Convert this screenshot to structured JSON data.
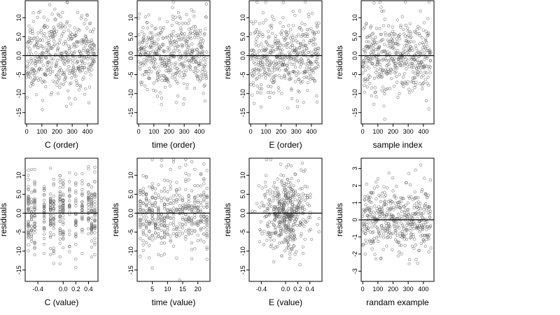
{
  "chart_data": [
    {
      "type": "scatter",
      "xlabel": "C (order)",
      "ylabel": "residuals",
      "xlim": [
        -10,
        470
      ],
      "ylim": [
        -18,
        14.5
      ],
      "xticks": [
        0,
        100,
        200,
        300,
        400
      ],
      "xtick_labels": [
        "0",
        "100",
        "200",
        "300",
        "400"
      ],
      "yticks": [
        -15,
        -10,
        -5,
        0,
        5,
        10
      ],
      "ytick_labels": [
        "-15",
        "-10",
        "-5",
        "0.0",
        "5.0",
        "10"
      ],
      "hline": 0,
      "n": 450,
      "x_mode": "order",
      "seed": 11,
      "sd": 5
    },
    {
      "type": "scatter",
      "xlabel": "time (order)",
      "ylabel": "residuals",
      "xlim": [
        -10,
        470
      ],
      "ylim": [
        -18,
        14.5
      ],
      "xticks": [
        0,
        100,
        200,
        300,
        400
      ],
      "xtick_labels": [
        "0",
        "100",
        "200",
        "300",
        "400"
      ],
      "yticks": [
        -15,
        -10,
        -5,
        0,
        5,
        10
      ],
      "ytick_labels": [
        "-15",
        "-10",
        "-5",
        "0.0",
        "5.0",
        "10"
      ],
      "hline": 0,
      "n": 450,
      "x_mode": "order",
      "seed": 23,
      "sd": 5
    },
    {
      "type": "scatter",
      "xlabel": "E (order)",
      "ylabel": "residuals",
      "xlim": [
        -10,
        470
      ],
      "ylim": [
        -18,
        14.5
      ],
      "xticks": [
        0,
        100,
        200,
        300,
        400
      ],
      "xtick_labels": [
        "0",
        "100",
        "200",
        "300",
        "400"
      ],
      "yticks": [
        -15,
        -10,
        -5,
        0,
        5,
        10
      ],
      "ytick_labels": [
        "-15",
        "-10",
        "-5",
        "0.0",
        "5.0",
        "10"
      ],
      "hline": 0,
      "n": 450,
      "x_mode": "order",
      "seed": 37,
      "sd": 5
    },
    {
      "type": "scatter",
      "xlabel": "sample index",
      "ylabel": "residuals",
      "xlim": [
        -10,
        470
      ],
      "ylim": [
        -18,
        14.5
      ],
      "xticks": [
        0,
        100,
        200,
        300,
        400
      ],
      "xtick_labels": [
        "0",
        "100",
        "200",
        "300",
        "400"
      ],
      "yticks": [
        -15,
        -10,
        -5,
        0,
        5,
        10
      ],
      "ytick_labels": [
        "-15",
        "-10",
        "-5",
        "0.0",
        "5.0",
        "10"
      ],
      "hline": 0,
      "n": 450,
      "x_mode": "order",
      "seed": 41,
      "sd": 5
    },
    {
      "type": "scatter",
      "xlabel": "C (value)",
      "ylabel": "residuals",
      "xlim": [
        -0.6,
        0.55
      ],
      "ylim": [
        -18,
        14.5
      ],
      "xticks": [
        -0.4,
        0,
        0.2,
        0.4
      ],
      "xtick_labels": [
        "-0.4",
        "0.0",
        "0.2",
        "0.4"
      ],
      "yticks": [
        -15,
        -10,
        -5,
        0,
        5,
        10
      ],
      "ytick_labels": [
        "-15",
        "-10",
        "-5",
        "0.0",
        "5.0",
        "10"
      ],
      "hline": 0,
      "n": 450,
      "x_mode": "levels",
      "x_levels": [
        -0.55,
        -0.5,
        -0.45,
        -0.3,
        -0.2,
        -0.15,
        -0.05,
        0,
        0.1,
        0.2,
        0.3,
        0.4,
        0.45,
        0.5
      ],
      "seed": 53,
      "sd": 5
    },
    {
      "type": "scatter",
      "xlabel": "time (value)",
      "ylabel": "residuals",
      "xlim": [
        0,
        24
      ],
      "ylim": [
        -18,
        14.5
      ],
      "xticks": [
        5,
        10,
        15,
        20
      ],
      "xtick_labels": [
        "5",
        "10",
        "15",
        "20"
      ],
      "yticks": [
        -15,
        -10,
        -5,
        0,
        5,
        10
      ],
      "ytick_labels": [
        "-15",
        "-10",
        "-5",
        "0.0",
        "5.0",
        "10"
      ],
      "hline": 0,
      "n": 450,
      "x_mode": "levels",
      "x_levels": [
        1,
        2,
        3,
        4,
        5,
        6,
        7,
        8,
        9,
        10,
        11,
        12,
        13,
        14,
        15,
        16,
        17,
        18,
        19,
        20,
        21,
        22,
        23
      ],
      "seed": 67,
      "sd": 5
    },
    {
      "type": "scatter",
      "xlabel": "E (value)",
      "ylabel": "residuals",
      "xlim": [
        -0.6,
        0.6
      ],
      "ylim": [
        -18,
        14.5
      ],
      "xticks": [
        -0.4,
        0,
        0.2,
        0.4
      ],
      "xtick_labels": [
        "-0.4",
        "0.0",
        "0.2",
        "0.4"
      ],
      "yticks": [
        -15,
        -10,
        -5,
        0,
        5,
        10
      ],
      "ytick_labels": [
        "-15",
        "-10",
        "-5",
        "0.0",
        "5.0",
        "10"
      ],
      "hline": 0,
      "n": 450,
      "x_mode": "centered",
      "x_sd": 0.2,
      "seed": 79,
      "sd": 5
    },
    {
      "type": "scatter",
      "xlabel": "randam example",
      "ylabel": "residuals",
      "xlim": [
        -10,
        470
      ],
      "ylim": [
        -3.6,
        3.6
      ],
      "xticks": [
        0,
        100,
        200,
        300,
        400
      ],
      "xtick_labels": [
        "0",
        "100",
        "200",
        "300",
        "400"
      ],
      "yticks": [
        -3,
        -2,
        -1,
        0,
        1,
        2,
        3
      ],
      "ytick_labels": [
        "-3",
        "-2",
        "-1",
        "0",
        "1",
        "2",
        "3"
      ],
      "hline": 0,
      "n": 450,
      "x_mode": "order",
      "seed": 97,
      "sd": 1
    }
  ]
}
